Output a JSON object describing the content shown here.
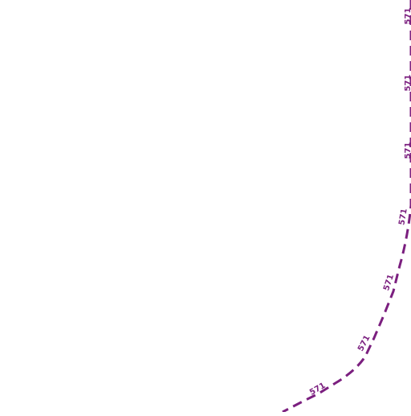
{
  "map": {
    "route": {
      "ref": "571",
      "color": "#7b1f7f",
      "line_style": "dashed"
    }
  }
}
